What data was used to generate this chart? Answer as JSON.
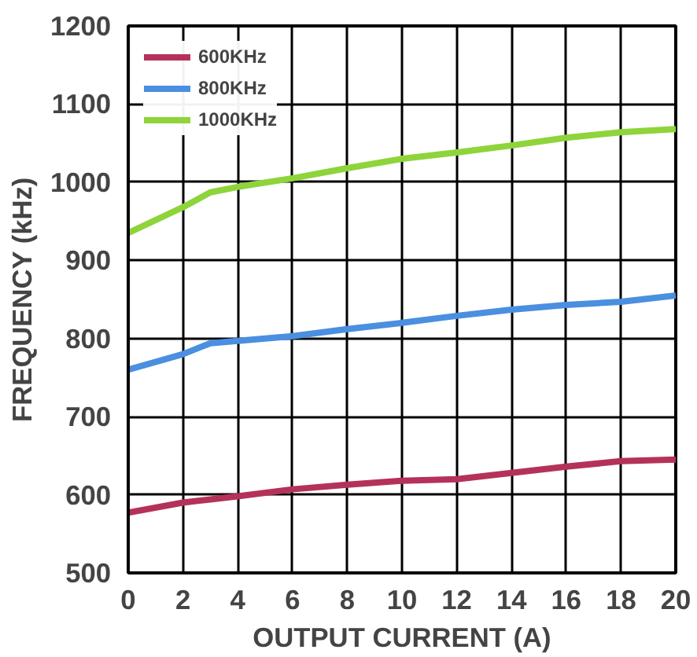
{
  "chart_data": {
    "type": "line",
    "xlabel": "OUTPUT CURRENT (A)",
    "ylabel": "FREQUENCY (kHz)",
    "x": [
      0,
      2,
      3,
      4,
      6,
      8,
      10,
      12,
      14,
      16,
      18,
      20
    ],
    "series": [
      {
        "name": "600KHz",
        "color": "#b4325a",
        "values": [
          577,
          590,
          594,
          598,
          607,
          613,
          618,
          620,
          628,
          636,
          643,
          645
        ]
      },
      {
        "name": "800KHz",
        "color": "#4a8fe0",
        "values": [
          760,
          780,
          794,
          797,
          803,
          812,
          820,
          829,
          837,
          843,
          847,
          855
        ]
      },
      {
        "name": "1000KHz",
        "color": "#8ed43a",
        "values": [
          935,
          968,
          987,
          994,
          1005,
          1018,
          1030,
          1038,
          1047,
          1057,
          1064,
          1068
        ]
      }
    ],
    "xlim": [
      0,
      20
    ],
    "ylim": [
      500,
      1200
    ],
    "xticks": [
      0,
      2,
      4,
      6,
      8,
      10,
      12,
      14,
      16,
      18,
      20
    ],
    "yticks": [
      500,
      600,
      700,
      800,
      900,
      1000,
      1100,
      1200
    ],
    "grid": true,
    "legend": "top left",
    "marker": "none",
    "line_style": "solid"
  }
}
